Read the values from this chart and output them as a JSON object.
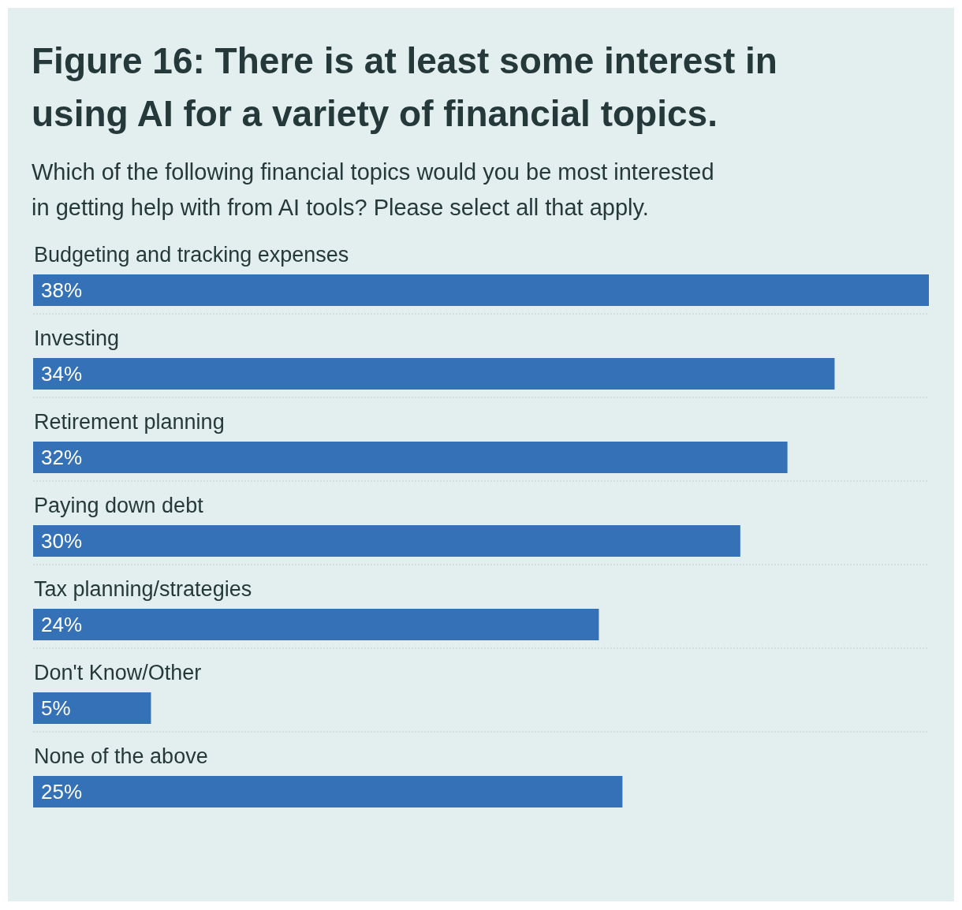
{
  "chart_data": {
    "type": "bar",
    "orientation": "horizontal",
    "title": "Figure 16: There is at least some interest in using AI for a variety of financial topics.",
    "subtitle": "Which of the following financial topics would you be most interested in getting help with from AI tools? Please select all that apply.",
    "categories": [
      "Budgeting and tracking expenses",
      "Investing",
      "Retirement planning",
      "Paying down debt",
      "Tax planning/strategies",
      "Don't Know/Other",
      "None of the above"
    ],
    "values": [
      38,
      34,
      32,
      30,
      24,
      5,
      25
    ],
    "value_labels": [
      "38%",
      "34%",
      "32%",
      "30%",
      "24%",
      "5%",
      "25%"
    ],
    "color": "#3571b7",
    "xlim": [
      0,
      38
    ],
    "grid": "y",
    "tick_labels": "y"
  }
}
